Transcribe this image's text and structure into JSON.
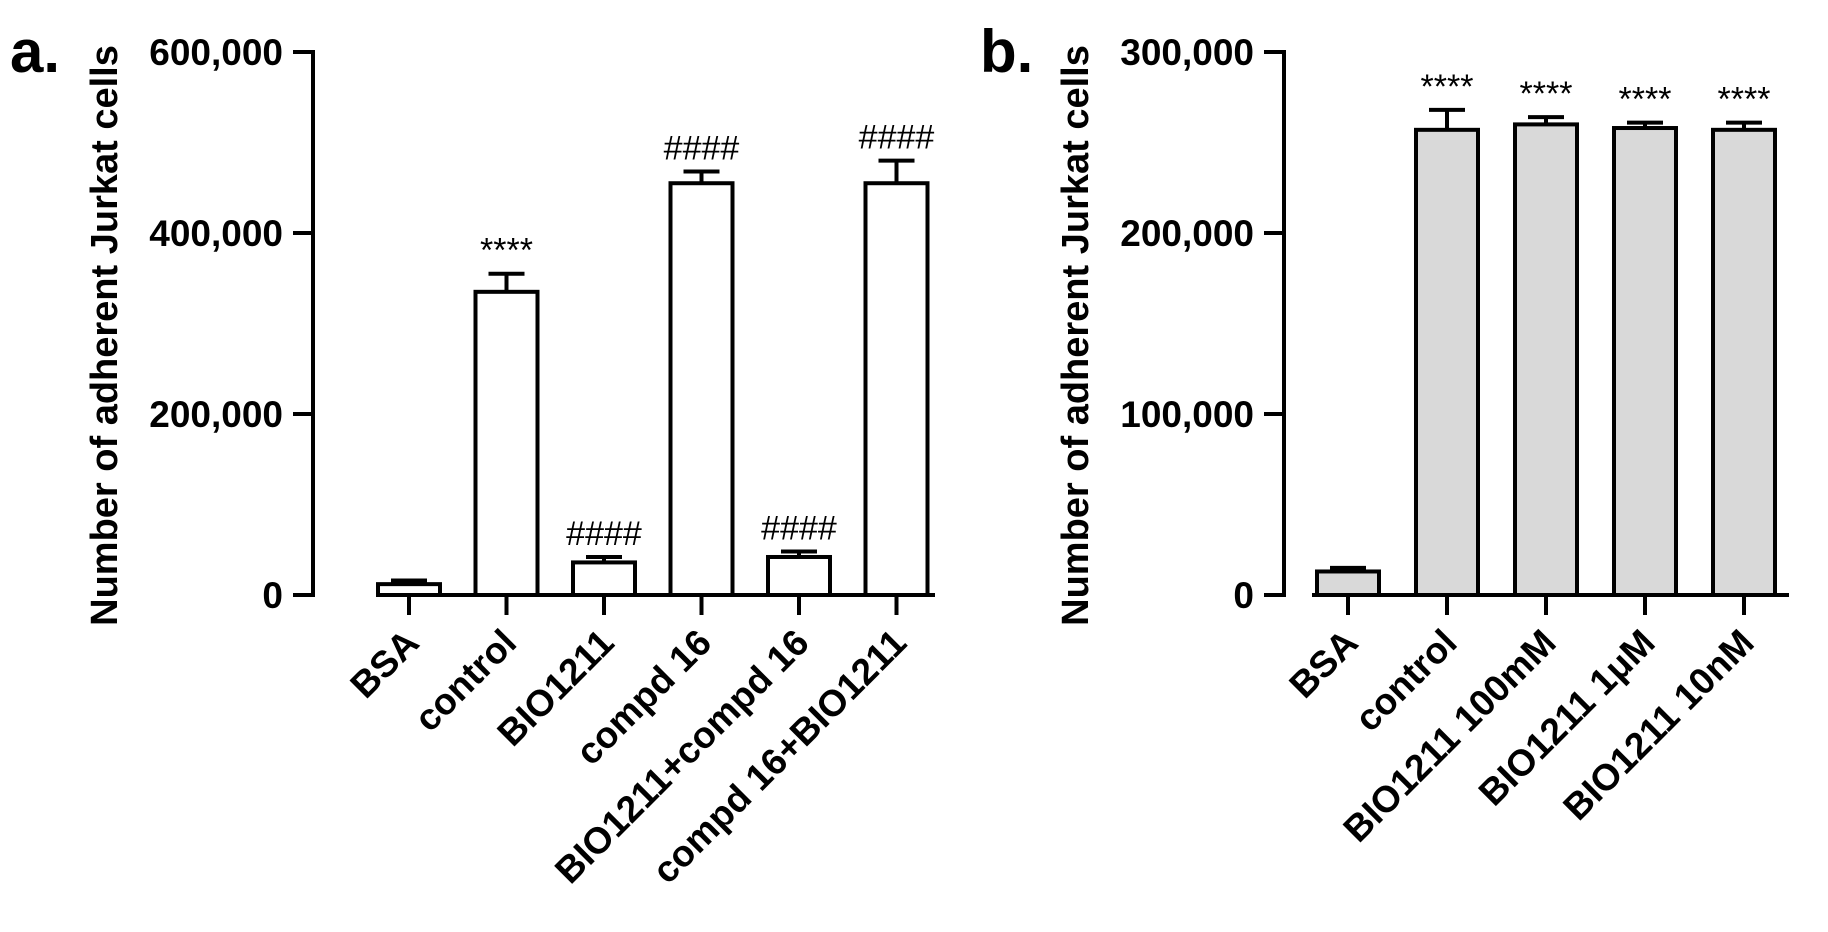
{
  "chart_data": [
    {
      "type": "bar",
      "panel": "a.",
      "ylabel": "Number of adherent Jurkat cells",
      "xlabel": "",
      "ylim": [
        0,
        600000
      ],
      "yticks": [
        0,
        200000,
        400000,
        600000
      ],
      "ytick_labels": [
        "0",
        "200,000",
        "400,000",
        "600,000"
      ],
      "categories": [
        "BSA",
        "control",
        "BIO1211",
        "compd 16",
        "BIO1211+compd 16",
        "compd 16+BIO1211"
      ],
      "values": [
        12000,
        335000,
        36000,
        455000,
        42000,
        455000
      ],
      "errors": [
        4000,
        20000,
        6000,
        13000,
        6000,
        25000
      ],
      "annotations": [
        "",
        "****",
        "####",
        "####",
        "####",
        "####"
      ],
      "bar_color": "#ffffff"
    },
    {
      "type": "bar",
      "panel": "b.",
      "ylabel": "Number of adherent Jurkat cells",
      "xlabel": "",
      "ylim": [
        0,
        300000
      ],
      "yticks": [
        0,
        100000,
        200000,
        300000
      ],
      "ytick_labels": [
        "0",
        "100,000",
        "200,000",
        "300,000"
      ],
      "categories": [
        "BSA",
        "control",
        "BIO1211 100mM",
        "BIO1211 1μM",
        "BIO1211 10nM"
      ],
      "values": [
        13000,
        257000,
        260000,
        258000,
        257000
      ],
      "errors": [
        2000,
        11000,
        4000,
        3000,
        4000
      ],
      "annotations": [
        "",
        "****",
        "****",
        "****",
        "****"
      ],
      "bar_color": "#d9d9d9"
    }
  ]
}
